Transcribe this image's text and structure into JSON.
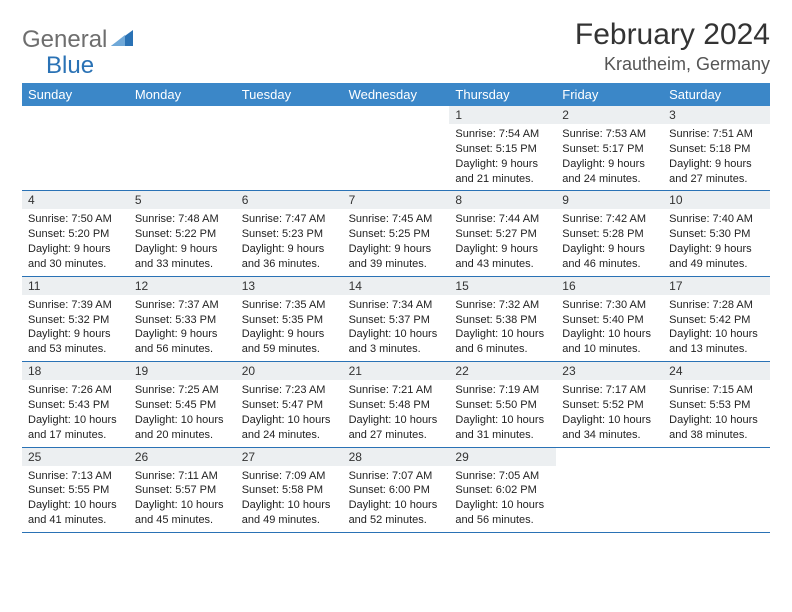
{
  "logo": {
    "text1": "General",
    "text2": "Blue"
  },
  "title": "February 2024",
  "location": "Krautheim, Germany",
  "day_headers": [
    "Sunday",
    "Monday",
    "Tuesday",
    "Wednesday",
    "Thursday",
    "Friday",
    "Saturday"
  ],
  "colors": {
    "header_bg": "#3b87c8",
    "accent": "#2a72b5",
    "daynum_bg": "#eceff1"
  },
  "typography": {
    "title_fontsize": 30,
    "location_fontsize": 18,
    "dayhead_fontsize": 13,
    "daynum_fontsize": 12,
    "body_fontsize": 11
  },
  "layout": {
    "cols": 7,
    "rows": 5,
    "leading_blanks": 4,
    "trailing_blanks": 2
  },
  "days": [
    {
      "n": "1",
      "sunrise": "7:54 AM",
      "sunset": "5:15 PM",
      "dl": "9 hours and 21 minutes."
    },
    {
      "n": "2",
      "sunrise": "7:53 AM",
      "sunset": "5:17 PM",
      "dl": "9 hours and 24 minutes."
    },
    {
      "n": "3",
      "sunrise": "7:51 AM",
      "sunset": "5:18 PM",
      "dl": "9 hours and 27 minutes."
    },
    {
      "n": "4",
      "sunrise": "7:50 AM",
      "sunset": "5:20 PM",
      "dl": "9 hours and 30 minutes."
    },
    {
      "n": "5",
      "sunrise": "7:48 AM",
      "sunset": "5:22 PM",
      "dl": "9 hours and 33 minutes."
    },
    {
      "n": "6",
      "sunrise": "7:47 AM",
      "sunset": "5:23 PM",
      "dl": "9 hours and 36 minutes."
    },
    {
      "n": "7",
      "sunrise": "7:45 AM",
      "sunset": "5:25 PM",
      "dl": "9 hours and 39 minutes."
    },
    {
      "n": "8",
      "sunrise": "7:44 AM",
      "sunset": "5:27 PM",
      "dl": "9 hours and 43 minutes."
    },
    {
      "n": "9",
      "sunrise": "7:42 AM",
      "sunset": "5:28 PM",
      "dl": "9 hours and 46 minutes."
    },
    {
      "n": "10",
      "sunrise": "7:40 AM",
      "sunset": "5:30 PM",
      "dl": "9 hours and 49 minutes."
    },
    {
      "n": "11",
      "sunrise": "7:39 AM",
      "sunset": "5:32 PM",
      "dl": "9 hours and 53 minutes."
    },
    {
      "n": "12",
      "sunrise": "7:37 AM",
      "sunset": "5:33 PM",
      "dl": "9 hours and 56 minutes."
    },
    {
      "n": "13",
      "sunrise": "7:35 AM",
      "sunset": "5:35 PM",
      "dl": "9 hours and 59 minutes."
    },
    {
      "n": "14",
      "sunrise": "7:34 AM",
      "sunset": "5:37 PM",
      "dl": "10 hours and 3 minutes."
    },
    {
      "n": "15",
      "sunrise": "7:32 AM",
      "sunset": "5:38 PM",
      "dl": "10 hours and 6 minutes."
    },
    {
      "n": "16",
      "sunrise": "7:30 AM",
      "sunset": "5:40 PM",
      "dl": "10 hours and 10 minutes."
    },
    {
      "n": "17",
      "sunrise": "7:28 AM",
      "sunset": "5:42 PM",
      "dl": "10 hours and 13 minutes."
    },
    {
      "n": "18",
      "sunrise": "7:26 AM",
      "sunset": "5:43 PM",
      "dl": "10 hours and 17 minutes."
    },
    {
      "n": "19",
      "sunrise": "7:25 AM",
      "sunset": "5:45 PM",
      "dl": "10 hours and 20 minutes."
    },
    {
      "n": "20",
      "sunrise": "7:23 AM",
      "sunset": "5:47 PM",
      "dl": "10 hours and 24 minutes."
    },
    {
      "n": "21",
      "sunrise": "7:21 AM",
      "sunset": "5:48 PM",
      "dl": "10 hours and 27 minutes."
    },
    {
      "n": "22",
      "sunrise": "7:19 AM",
      "sunset": "5:50 PM",
      "dl": "10 hours and 31 minutes."
    },
    {
      "n": "23",
      "sunrise": "7:17 AM",
      "sunset": "5:52 PM",
      "dl": "10 hours and 34 minutes."
    },
    {
      "n": "24",
      "sunrise": "7:15 AM",
      "sunset": "5:53 PM",
      "dl": "10 hours and 38 minutes."
    },
    {
      "n": "25",
      "sunrise": "7:13 AM",
      "sunset": "5:55 PM",
      "dl": "10 hours and 41 minutes."
    },
    {
      "n": "26",
      "sunrise": "7:11 AM",
      "sunset": "5:57 PM",
      "dl": "10 hours and 45 minutes."
    },
    {
      "n": "27",
      "sunrise": "7:09 AM",
      "sunset": "5:58 PM",
      "dl": "10 hours and 49 minutes."
    },
    {
      "n": "28",
      "sunrise": "7:07 AM",
      "sunset": "6:00 PM",
      "dl": "10 hours and 52 minutes."
    },
    {
      "n": "29",
      "sunrise": "7:05 AM",
      "sunset": "6:02 PM",
      "dl": "10 hours and 56 minutes."
    }
  ],
  "labels": {
    "sunrise": "Sunrise: ",
    "sunset": "Sunset: ",
    "daylight": "Daylight: "
  }
}
